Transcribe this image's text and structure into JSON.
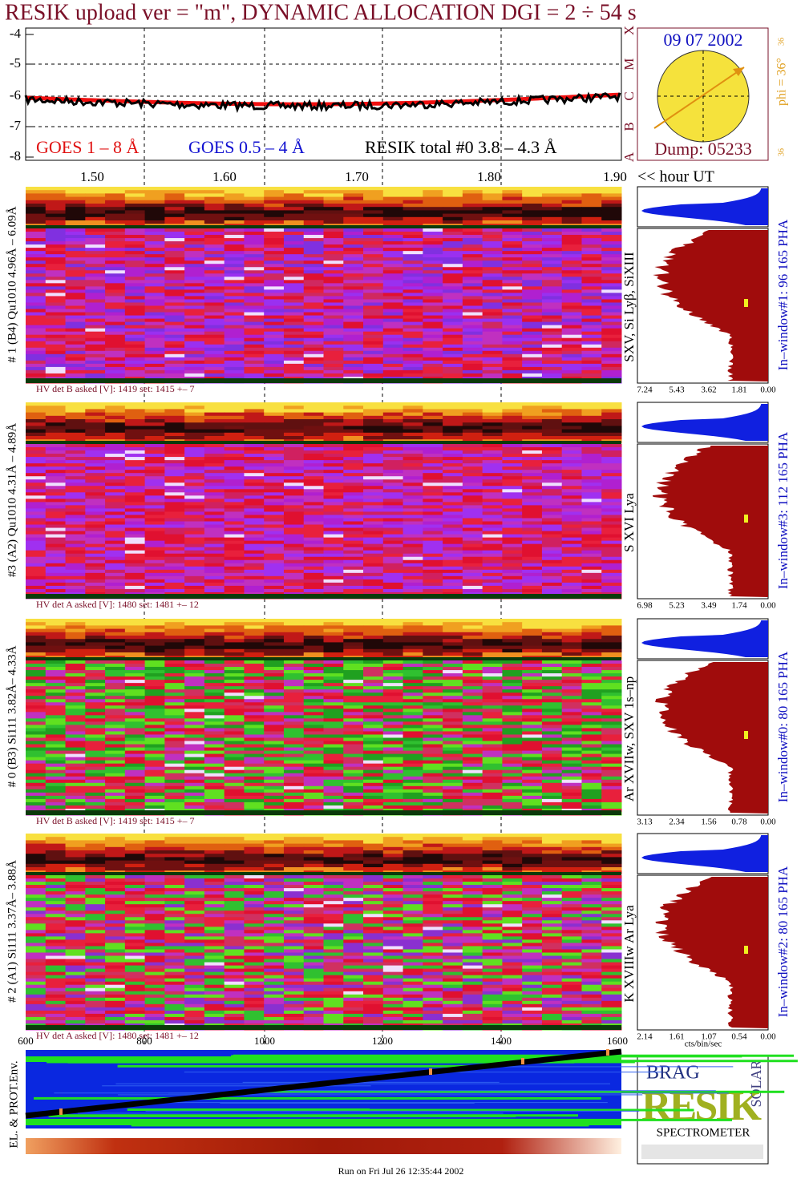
{
  "title": "RESIK upload ver = \"m\", DYNAMIC ALLOCATION  DGI =   2 ÷  54 s",
  "lightcurve": {
    "yticks": [
      "-4",
      "-5",
      "-6",
      "-7",
      "-8"
    ],
    "legend": [
      "GOES 1 – 8 Å",
      "GOES 0.5 – 4 Å",
      "RESIK total #0  3.8 – 4.3 Å"
    ],
    "classes": [
      "X",
      "M",
      "C",
      "B",
      "A"
    ]
  },
  "sun": {
    "date": "09 07 2002",
    "dump": "Dump: 05233",
    "phi": "phi = 36°",
    "phi_small": [
      "36",
      "36"
    ]
  },
  "time_axis": {
    "ticks": [
      "1.50",
      "1.60",
      "1.70",
      "1.80",
      "1.90"
    ],
    "label": "<< hour UT"
  },
  "panels": [
    {
      "label": "# 1 (B4) Qu1010 4.96Å – 6.09Å",
      "lines": "SXV, Si Lyβ, SiXIII",
      "hv": "HV det B asked [V]:  1419 set:  1415  +–    7",
      "pha_ticks": [
        "7.24",
        "5.43",
        "3.62",
        "1.81",
        "0.00"
      ],
      "window": "In–window#1:  96 165  PHA"
    },
    {
      "label": "#3 (A2) Qu1010  4.31Å – 4.89Å",
      "lines": "S XVI Lya",
      "hv": "HV det A asked [V]:  1480 set:  1481  +–   12",
      "pha_ticks": [
        "6.98",
        "5.23",
        "3.49",
        "1.74",
        "0.00"
      ],
      "window": "In–window#3:  112 165  PHA"
    },
    {
      "label": "# 0 (B3) Si111  3.82Å– 4.33Å",
      "lines": "Ar XVIIw,  SXV 1s–np",
      "hv": "HV det B asked [V]:  1419 set:  1415  +–    7",
      "pha_ticks": [
        "3.13",
        "2.34",
        "1.56",
        "0.78",
        "0.00"
      ],
      "window": "In–window#0:  80 165  PHA"
    },
    {
      "label": "# 2 (A1) Si111  3.37Å– 3.88Å",
      "lines": "K XVIIIw  Ar Lya",
      "hv": "HV det A asked [V]:  1480 set:  1481  +–   12",
      "pha_ticks": [
        "2.14",
        "1.61",
        "1.07",
        "0.54",
        "0.00"
      ],
      "window": "In–window#2:  80 165  PHA"
    }
  ],
  "channel_axis": {
    "ticks": [
      "600",
      "800",
      "1000",
      "1200",
      "1400",
      "1600"
    ]
  },
  "env_label": "EL. & PROT.Env.",
  "pha_unit": "cts/bin/sec",
  "logo": {
    "words": [
      "BRAG",
      "RESIK",
      "SOLAR"
    ],
    "text": "SPECTROMETER"
  },
  "footer": "Run on Fri Jul 26 12:35:44 2002"
}
